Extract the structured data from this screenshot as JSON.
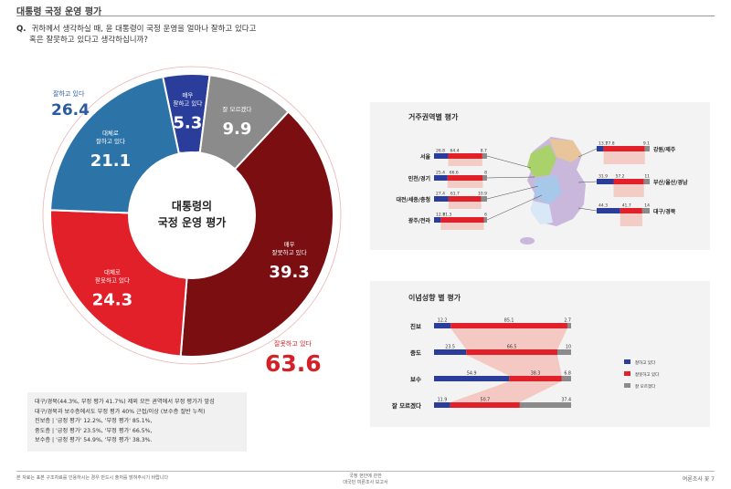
{
  "header": {
    "title": "대통령 국정 운영 평가"
  },
  "question": {
    "marker": "Q.",
    "line1": "귀하께서 생각하실 때, 윤 대통령이 국정 운영을 얼마나 잘하고 있다고",
    "line2": "혹은 잘못하고 있다고 생각하십니까?"
  },
  "chart_data": [
    {
      "type": "pie",
      "center_label": [
        "대통령의",
        "국정 운영 평가"
      ],
      "slices": [
        {
          "label": [
            "매우",
            "잘하고 있다"
          ],
          "value": 5.3,
          "color": "#2b3d9a"
        },
        {
          "label": [
            "잘 모르겠다"
          ],
          "value": 9.9,
          "color": "#8b8b8b"
        },
        {
          "label": [
            "매우",
            "잘못하고 있다"
          ],
          "value": 39.3,
          "color": "#7a0e11"
        },
        {
          "label": [
            "대체로",
            "잘못하고 있다"
          ],
          "value": 24.3,
          "color": "#e22029"
        },
        {
          "label": [
            "대체로",
            "잘하고 있다"
          ],
          "value": 21.1,
          "color": "#2c73a8"
        }
      ],
      "totals": [
        {
          "label": "잘하고 있다",
          "value": "26.4",
          "color": "#2c5aa0"
        },
        {
          "label": "잘못하고 있다",
          "value": "63.6",
          "color": "#d62027"
        }
      ]
    },
    {
      "type": "bar",
      "title": "거주권역별 평가",
      "stacked": true,
      "series_colors": [
        "#2b3d9a",
        "#e22029",
        "#8b8b8b"
      ],
      "left": [
        {
          "name": "서울",
          "values": [
            26.8,
            64.4,
            8.7
          ]
        },
        {
          "name": "인천/경기",
          "values": [
            25.4,
            66.6,
            8.0
          ]
        },
        {
          "name": "대전/세종/충청",
          "values": [
            27.4,
            61.7,
            10.9
          ]
        },
        {
          "name": "광주/전라",
          "values": [
            12.7,
            81.3,
            6.0
          ]
        }
      ],
      "right": [
        {
          "name": "강원/제주",
          "values": [
            13.1,
            77.8,
            9.1
          ]
        },
        {
          "name": "부산/울산/경남",
          "values": [
            31.9,
            57.2,
            11.0
          ]
        },
        {
          "name": "대구/경북",
          "values": [
            44.3,
            41.7,
            14.0
          ]
        }
      ],
      "value_labels": {
        "left": [
          [
            "26.8",
            "64.4",
            "8.7"
          ],
          [
            "25.4",
            "66.6",
            "8"
          ],
          [
            "27.4",
            "61.7",
            "10.9"
          ],
          [
            "12.7",
            "81.3",
            "6"
          ]
        ],
        "right": [
          [
            "13.1",
            "77.8",
            "9.1"
          ],
          [
            "31.9",
            "57.2",
            "11"
          ],
          [
            "44.3",
            "41.7",
            "14"
          ]
        ]
      }
    },
    {
      "type": "bar",
      "title": "이념성향 별 평가",
      "stacked": true,
      "categories": [
        "진보",
        "중도",
        "보수",
        "잘 모르겠다"
      ],
      "series": [
        {
          "name": "잘하고 있다",
          "values": [
            12.2,
            23.5,
            54.9,
            11.9
          ],
          "color": "#2b3d9a"
        },
        {
          "name": "잘못하고 있다",
          "values": [
            85.1,
            66.5,
            38.3,
            50.7
          ],
          "color": "#e22029"
        },
        {
          "name": "잘 모르겠다",
          "values": [
            2.7,
            10.0,
            6.8,
            37.4
          ],
          "color": "#8b8b8b"
        }
      ],
      "value_labels": [
        [
          "12.2",
          "85.1",
          "2.7"
        ],
        [
          "23.5",
          "66.5",
          "10"
        ],
        [
          "54.9",
          "38.3",
          "6.8"
        ],
        [
          "11.9",
          "50.7",
          "37.4"
        ]
      ],
      "legend": [
        "잘하고 있다",
        "잘못하고 있다",
        "잘 모르겠다"
      ]
    }
  ],
  "notes": [
    "대구/경북(44.3%, 부정 평가 41.7%) 제외 모든 권역에서 부정 평가가 앞섬",
    "대구/경북과 보수층에서도 부정 평가 40% 근접/이상 (보수층 절반 누적)",
    "진보층 | '긍정 평가' 12.2%, '부정 평가' 85.1%,",
    "중도층 | '긍정 평가' 23.5%, '부정 평가' 66.5%,",
    "보수층 | '긍정 평가' 54.9%, '부정 평가' 38.3%."
  ],
  "footer": {
    "left": "본 자료는 표본 구조자료를 인용하시는 경우 반드시 출처를 밝혀주시기 바랍니다",
    "center1": "국정 현안에 관한",
    "center2": "대국민 여론조사 보고서",
    "right": "여론조사 꽃   7"
  }
}
